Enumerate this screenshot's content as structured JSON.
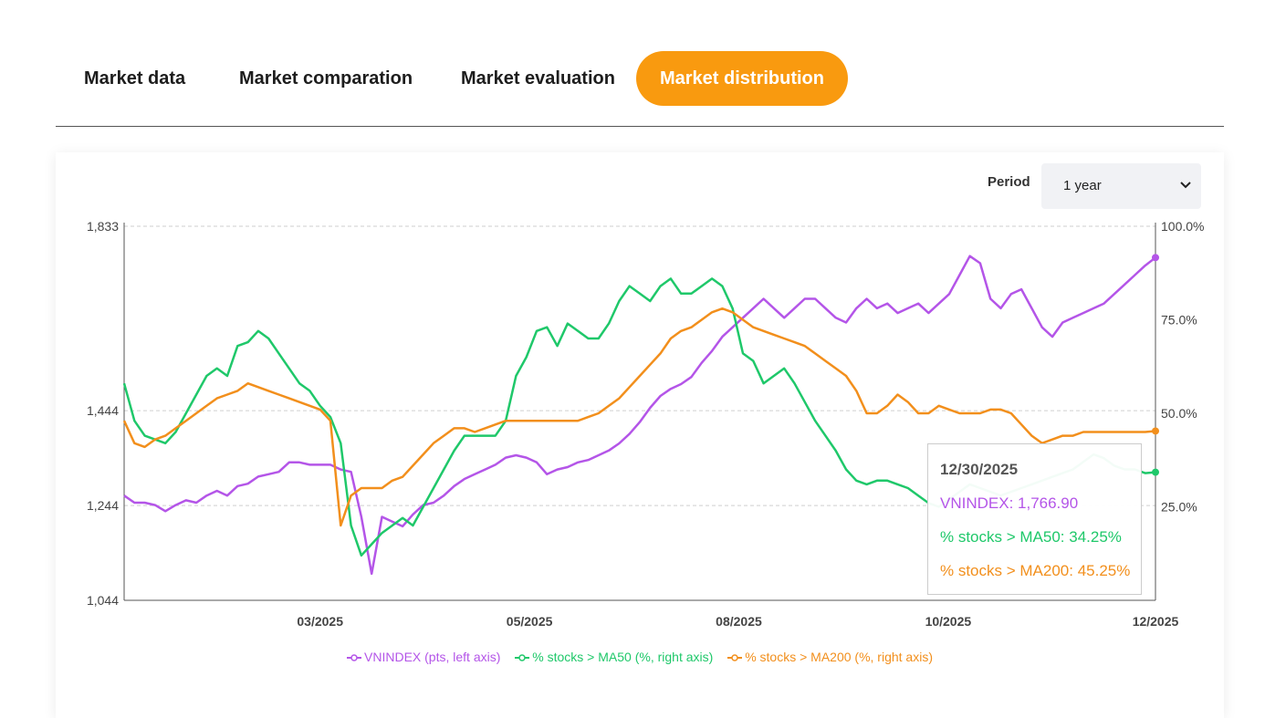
{
  "tabs": [
    {
      "label": "Market data",
      "active": false
    },
    {
      "label": "Market comparation",
      "active": false
    },
    {
      "label": "Market evaluation",
      "active": false
    },
    {
      "label": "Market distribution",
      "active": true
    }
  ],
  "period": {
    "label": "Period",
    "selected": "1 year"
  },
  "tooltip": {
    "date": "12/30/2025",
    "vnindex": "VNINDEX: 1,766.90",
    "ma50": "% stocks > MA50: 34.25%",
    "ma200": "% stocks > MA200: 45.25%"
  },
  "colors": {
    "vnindex": "#b455e8",
    "ma50": "#1fc86a",
    "ma200": "#f28f1c",
    "accent": "#f99a0f"
  },
  "chart_data": {
    "type": "line",
    "left_axis": {
      "ticks": [
        "1,833",
        "1,444",
        "1,244",
        "1,044"
      ],
      "range": [
        1044,
        1833
      ],
      "label": ""
    },
    "right_axis": {
      "ticks": [
        "100.0%",
        "75.0%",
        "50.0%",
        "25.0%"
      ],
      "range": [
        0,
        100
      ],
      "label": ""
    },
    "x_ticks": [
      "03/2025",
      "05/2025",
      "08/2025",
      "10/2025",
      "12/2025"
    ],
    "grid": true,
    "legend_position": "bottom-center",
    "series": [
      {
        "name": "VNINDEX (pts, left axis)",
        "axis": "left",
        "values": [
          1265,
          1250,
          1250,
          1245,
          1232,
          1245,
          1255,
          1250,
          1265,
          1275,
          1265,
          1285,
          1290,
          1305,
          1310,
          1315,
          1335,
          1335,
          1330,
          1330,
          1330,
          1320,
          1315,
          1220,
          1100,
          1220,
          1210,
          1200,
          1225,
          1245,
          1250,
          1265,
          1285,
          1300,
          1310,
          1320,
          1330,
          1345,
          1350,
          1345,
          1335,
          1310,
          1320,
          1325,
          1335,
          1340,
          1350,
          1360,
          1375,
          1395,
          1420,
          1450,
          1475,
          1490,
          1500,
          1515,
          1545,
          1570,
          1600,
          1620,
          1640,
          1660,
          1680,
          1660,
          1640,
          1660,
          1680,
          1680,
          1660,
          1640,
          1630,
          1660,
          1680,
          1660,
          1670,
          1650,
          1660,
          1670,
          1650,
          1670,
          1690,
          1730,
          1770,
          1755,
          1680,
          1660,
          1690,
          1700,
          1660,
          1620,
          1600,
          1630,
          1640,
          1650,
          1660,
          1670,
          1690,
          1710,
          1730,
          1750,
          1766.9
        ]
      },
      {
        "name": "% stocks > MA50 (%, right axis)",
        "axis": "right",
        "values": [
          58,
          48,
          44,
          43,
          42,
          45,
          50,
          55,
          60,
          62,
          60,
          68,
          69,
          72,
          70,
          66,
          62,
          58,
          56,
          52,
          49,
          42,
          20,
          12,
          15,
          18,
          20,
          22,
          20,
          25,
          30,
          35,
          40,
          44,
          44,
          44,
          44,
          48,
          60,
          65,
          72,
          73,
          68,
          74,
          72,
          70,
          70,
          74,
          80,
          84,
          82,
          80,
          84,
          86,
          82,
          82,
          84,
          86,
          84,
          78,
          66,
          64,
          58,
          60,
          62,
          58,
          53,
          48,
          44,
          40,
          35,
          32,
          31,
          32,
          32,
          31,
          30,
          28,
          26,
          25,
          27,
          29,
          31,
          30,
          29,
          28,
          29,
          30,
          31,
          32,
          33,
          34,
          35,
          37,
          39,
          38,
          36,
          35,
          35,
          34,
          34.25
        ]
      },
      {
        "name": "% stocks > MA200 (%, right axis)",
        "axis": "right",
        "values": [
          48,
          42,
          41,
          43,
          44,
          46,
          48,
          50,
          52,
          54,
          55,
          56,
          58,
          57,
          56,
          55,
          54,
          53,
          52,
          51,
          48,
          20,
          28,
          30,
          30,
          30,
          32,
          33,
          36,
          39,
          42,
          44,
          46,
          46,
          45,
          46,
          47,
          48,
          48,
          48,
          48,
          48,
          48,
          48,
          48,
          49,
          50,
          52,
          54,
          57,
          60,
          63,
          66,
          70,
          72,
          73,
          75,
          77,
          78,
          77,
          75,
          73,
          72,
          71,
          70,
          69,
          68,
          66,
          64,
          62,
          60,
          56,
          50,
          50,
          52,
          55,
          53,
          50,
          50,
          52,
          51,
          50,
          50,
          50,
          51,
          51,
          50,
          47,
          44,
          42,
          43,
          44,
          44,
          45,
          45,
          45,
          45,
          45,
          45,
          45,
          45.25
        ]
      }
    ]
  },
  "legend": [
    {
      "label": "VNINDEX (pts, left axis)"
    },
    {
      "label": "% stocks > MA50 (%, right axis)"
    },
    {
      "label": "% stocks > MA200 (%, right axis)"
    }
  ]
}
